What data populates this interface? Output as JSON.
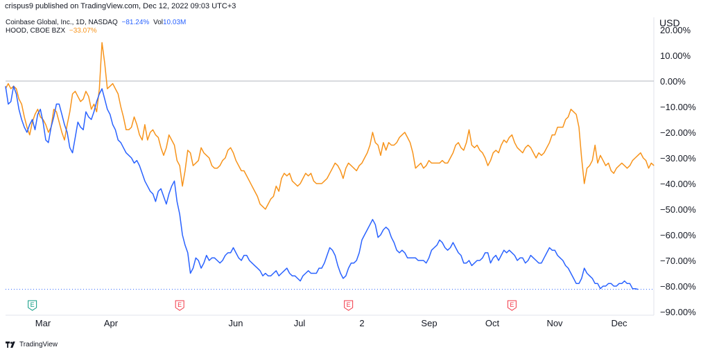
{
  "header": {
    "published_text": "crispus9 published on TradingView.com, Dec 12, 2022 09:03 UTC+3"
  },
  "legend": [
    {
      "symbol": "Coinbase Global, Inc., 1D, NASDAQ",
      "change": "−81.24%",
      "vol_label": "Vol",
      "vol_value": "10.03M",
      "color": "#2962ff"
    },
    {
      "symbol": "HOOD, CBOE BZX",
      "change": "−33.07%",
      "color": "#f7931a"
    }
  ],
  "currency": "USD",
  "footer": {
    "brand": "TradingView",
    "logo_icon": "tradingview-logo-icon"
  },
  "chart_data": {
    "type": "line",
    "y_unit": "%",
    "ylim": [
      -90,
      20
    ],
    "y_ticks": [
      "20.00%",
      "10.00%",
      "0.00%",
      "−10.00%",
      "−20.00%",
      "−30.00%",
      "−40.00%",
      "−50.00%",
      "−60.00%",
      "−70.00%",
      "−80.00%",
      "−90.00%"
    ],
    "x_ticks": [
      "Mar",
      "Apr",
      "Jun",
      "Jul",
      "2",
      "Sep",
      "Oct",
      "Nov",
      "Dec"
    ],
    "baseline": 0,
    "last_value_line": -81.24,
    "earnings_markers": [
      {
        "label": "E",
        "color": "#089981",
        "bar": 10
      },
      {
        "label": "E",
        "color": "#f23645",
        "bar": 65
      },
      {
        "label": "E",
        "color": "#f23645",
        "bar": 128
      },
      {
        "label": "E",
        "color": "#f23645",
        "bar": 189
      }
    ],
    "series": [
      {
        "name": "COIN",
        "color": "#2962ff",
        "values": [
          -2,
          -9,
          -8,
          -2,
          -5,
          -11,
          -15,
          -18,
          -20,
          -17,
          -15,
          -19,
          -13,
          -11,
          -16,
          -23,
          -24,
          -18,
          -14,
          -9,
          -9,
          -13,
          -17,
          -20,
          -26,
          -28,
          -22,
          -16,
          -18,
          -19,
          -12,
          -14,
          -15,
          -12,
          -8,
          -5,
          -3,
          -7,
          -11,
          -13,
          -17,
          -19,
          -23,
          -24,
          -26,
          -28,
          -29,
          -30,
          -32,
          -31,
          -33,
          -36,
          -39,
          -41,
          -43,
          -44,
          -47,
          -43,
          -42,
          -45,
          -48,
          -44,
          -41,
          -39,
          -47,
          -52,
          -60,
          -64,
          -67,
          -75,
          -73,
          -69,
          -70,
          -73,
          -71,
          -68,
          -70,
          -69,
          -69,
          -70,
          -71,
          -70,
          -68,
          -67,
          -67,
          -65,
          -67,
          -69,
          -70,
          -68,
          -68,
          -70,
          -71,
          -72,
          -73,
          -74,
          -76,
          -75,
          -76,
          -76,
          -75,
          -74,
          -76,
          -75,
          -74,
          -73,
          -75,
          -76,
          -76,
          -77,
          -78,
          -76,
          -75,
          -74,
          -75,
          -75,
          -75,
          -73,
          -73,
          -71,
          -68,
          -65,
          -66,
          -68,
          -72,
          -75,
          -77,
          -76,
          -73,
          -71,
          -71,
          -70,
          -67,
          -62,
          -60,
          -58,
          -56,
          -54,
          -56,
          -61,
          -60,
          -58,
          -57,
          -58,
          -61,
          -63,
          -66,
          -67,
          -66,
          -67,
          -69,
          -69,
          -69,
          -69,
          -70,
          -70,
          -70,
          -71,
          -69,
          -66,
          -65,
          -64,
          -62,
          -63,
          -65,
          -66,
          -65,
          -63,
          -65,
          -67,
          -68,
          -71,
          -71,
          -70,
          -72,
          -71,
          -70,
          -70,
          -69,
          -67,
          -67,
          -71,
          -69,
          -68,
          -70,
          -68,
          -66,
          -67,
          -66,
          -67,
          -68,
          -70,
          -69,
          -69,
          -71,
          -70,
          -68,
          -69,
          -70,
          -71,
          -71,
          -69,
          -67,
          -65,
          -66,
          -66,
          -68,
          -69,
          -70,
          -72,
          -73,
          -75,
          -77,
          -79,
          -79,
          -77,
          -73,
          -75,
          -76,
          -77,
          -79,
          -79,
          -81,
          -80,
          -80,
          -79,
          -79,
          -80,
          -80,
          -79,
          -79,
          -78,
          -79,
          -79,
          -81,
          -81,
          -81.24
        ]
      },
      {
        "name": "HOOD",
        "color": "#f7931a",
        "values": [
          -3,
          -1,
          -3,
          -2,
          -3,
          -7,
          -9,
          -14,
          -18,
          -21,
          -16,
          -13,
          -11,
          -14,
          -15,
          -17,
          -20,
          -18,
          -11,
          -12,
          -16,
          -20,
          -23,
          -17,
          -12,
          -5,
          -4,
          -6,
          -8,
          -7,
          -4,
          -6,
          -11,
          -9,
          -12,
          -3,
          15,
          7,
          -3,
          -2,
          -1,
          -3,
          -5,
          -10,
          -14,
          -19,
          -19,
          -18,
          -14,
          -17,
          -21,
          -23,
          -17,
          -23,
          -20,
          -19,
          -21,
          -22,
          -26,
          -29,
          -26,
          -21,
          -23,
          -25,
          -31,
          -33,
          -41,
          -35,
          -27,
          -28,
          -33,
          -32,
          -31,
          -26,
          -28,
          -29,
          -30,
          -33,
          -34,
          -34,
          -33,
          -31,
          -30,
          -27,
          -26,
          -28,
          -31,
          -33,
          -35,
          -35,
          -37,
          -39,
          -41,
          -43,
          -45,
          -48,
          -49,
          -50,
          -48,
          -46,
          -45,
          -41,
          -43,
          -38,
          -36,
          -37,
          -36,
          -39,
          -40,
          -41,
          -40,
          -38,
          -36,
          -37,
          -36,
          -39,
          -40,
          -40,
          -40,
          -39,
          -38,
          -36,
          -34,
          -32,
          -33,
          -35,
          -38,
          -34,
          -32,
          -33,
          -34,
          -35,
          -33,
          -32,
          -30,
          -28,
          -25,
          -20,
          -24,
          -25,
          -29,
          -24,
          -27,
          -24,
          -25,
          -25,
          -24,
          -22,
          -21,
          -20,
          -22,
          -24,
          -28,
          -34,
          -33,
          -32,
          -34,
          -33,
          -31,
          -32,
          -32,
          -32,
          -32,
          -31,
          -32,
          -32,
          -30,
          -28,
          -25,
          -24,
          -26,
          -27,
          -24,
          -19,
          -25,
          -26,
          -25,
          -27,
          -28,
          -30,
          -33,
          -31,
          -28,
          -27,
          -28,
          -25,
          -23,
          -24,
          -22,
          -21,
          -24,
          -26,
          -27,
          -28,
          -26,
          -25,
          -26,
          -28,
          -30,
          -28,
          -29,
          -28,
          -26,
          -24,
          -21,
          -21,
          -18,
          -18,
          -18,
          -15,
          -14,
          -11,
          -12,
          -13,
          -18,
          -30,
          -40,
          -34,
          -33,
          -31,
          -25,
          -32,
          -29,
          -31,
          -33,
          -32,
          -35,
          -36,
          -34,
          -33,
          -32,
          -33,
          -34,
          -33,
          -31,
          -30,
          -29,
          -28,
          -30,
          -31,
          -34,
          -32,
          -33
        ]
      }
    ]
  }
}
